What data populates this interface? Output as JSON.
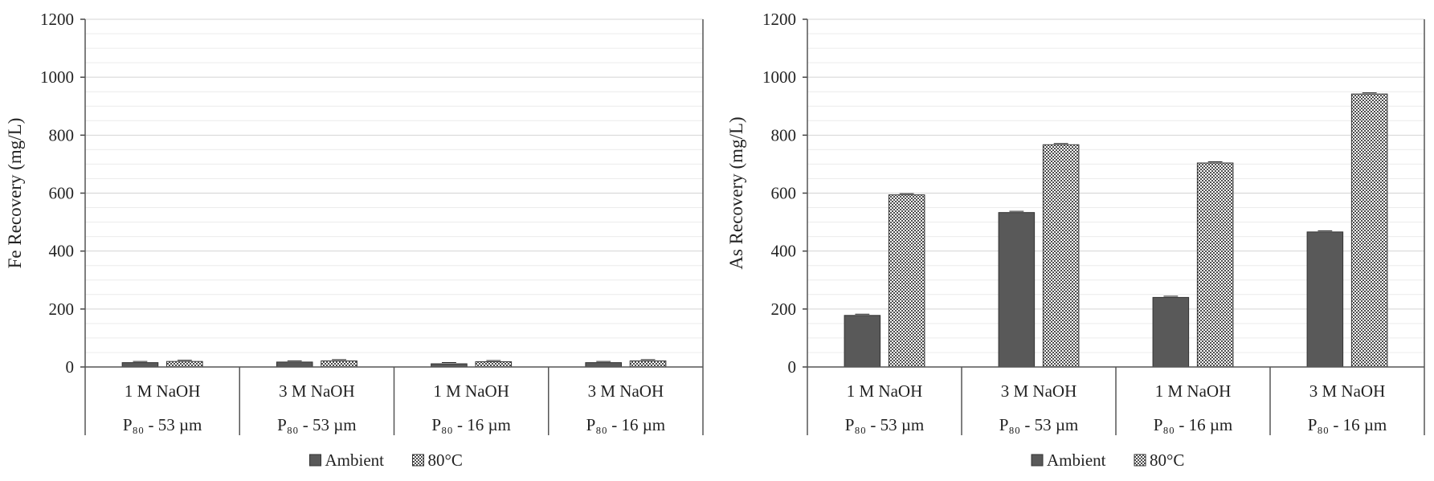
{
  "chart_data": [
    {
      "type": "bar",
      "title": "",
      "xlabel": "",
      "ylabel": "Fe Recovery (mg/L)",
      "ylim": [
        0,
        1200
      ],
      "yticks": [
        0,
        200,
        400,
        600,
        800,
        1000,
        1200
      ],
      "grid": true,
      "legend_position": "bottom",
      "categories": [
        {
          "line1": "1 M NaOH",
          "line2": "P₈₀ - 53 µm"
        },
        {
          "line1": "3 M NaOH",
          "line2": "P₈₀ - 53 µm"
        },
        {
          "line1": "1 M NaOH",
          "line2": "P₈₀ - 16 µm"
        },
        {
          "line1": "3 M NaOH",
          "line2": "P₈₀ - 16 µm"
        }
      ],
      "series": [
        {
          "name": "Ambient",
          "values": [
            15,
            17,
            11,
            15
          ],
          "color": "#595959",
          "pattern": "solid"
        },
        {
          "name": "80°C",
          "values": [
            19,
            21,
            18,
            21
          ],
          "color": "#595959",
          "pattern": "checker"
        }
      ]
    },
    {
      "type": "bar",
      "title": "",
      "xlabel": "",
      "ylabel": "As Recovery (mg/L)",
      "ylim": [
        0,
        1200
      ],
      "yticks": [
        0,
        200,
        400,
        600,
        800,
        1000,
        1200
      ],
      "grid": true,
      "legend_position": "bottom",
      "categories": [
        {
          "line1": "1 M NaOH",
          "line2": "P₈₀ - 53 µm"
        },
        {
          "line1": "3 M NaOH",
          "line2": "P₈₀ - 53 µm"
        },
        {
          "line1": "1 M NaOH",
          "line2": "P₈₀ - 16 µm"
        },
        {
          "line1": "3 M NaOH",
          "line2": "P₈₀ - 16 µm"
        }
      ],
      "series": [
        {
          "name": "Ambient",
          "values": [
            178,
            533,
            240,
            466
          ],
          "color": "#595959",
          "pattern": "solid"
        },
        {
          "name": "80°C",
          "values": [
            594,
            767,
            704,
            942
          ],
          "color": "#595959",
          "pattern": "checker"
        }
      ]
    }
  ]
}
